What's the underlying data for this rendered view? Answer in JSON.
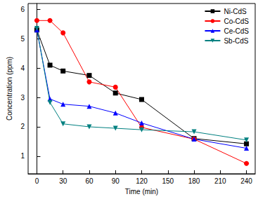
{
  "chart_data": {
    "type": "line",
    "x_label": "Time (min)",
    "y_label": "Concentration (ppm)",
    "x": [
      0,
      15,
      30,
      60,
      90,
      120,
      180,
      240
    ],
    "series": [
      {
        "name": "Ni-CdS",
        "color": "#000000",
        "marker": "square",
        "values": [
          5.3,
          4.1,
          3.9,
          3.75,
          3.15,
          2.93,
          1.6,
          1.42
        ]
      },
      {
        "name": "Co-CdS",
        "color": "#ff0000",
        "marker": "circle",
        "values": [
          5.62,
          5.62,
          5.2,
          3.53,
          3.35,
          1.98,
          1.58,
          0.75
        ]
      },
      {
        "name": "Ce-CdS",
        "color": "#0000ff",
        "marker": "triangle",
        "values": [
          5.3,
          2.95,
          2.77,
          2.7,
          2.47,
          2.13,
          1.58,
          1.27
        ]
      },
      {
        "name": "Sb-CdS",
        "color": "#008080",
        "marker": "triangle_down",
        "values": [
          5.35,
          2.83,
          2.1,
          2.0,
          1.95,
          1.9,
          1.83,
          1.55
        ]
      }
    ],
    "xlim": [
      -10,
      250
    ],
    "xticks": [
      0,
      30,
      60,
      90,
      120,
      150,
      180,
      210,
      240
    ],
    "ylim": [
      0.4,
      6.2
    ],
    "yticks": [
      1,
      2,
      3,
      4,
      5,
      6
    ],
    "grid": false,
    "legend": "upper right"
  }
}
